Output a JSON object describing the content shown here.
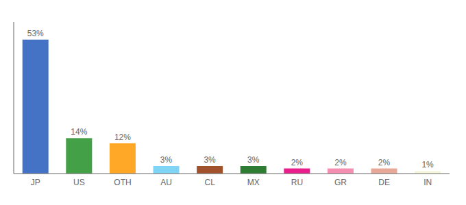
{
  "chart_data": {
    "type": "bar",
    "categories": [
      "JP",
      "US",
      "OTH",
      "AU",
      "CL",
      "MX",
      "RU",
      "GR",
      "DE",
      "IN"
    ],
    "values": [
      53,
      14,
      12,
      3,
      3,
      3,
      2,
      2,
      2,
      1
    ],
    "value_labels": [
      "53%",
      "14%",
      "12%",
      "3%",
      "3%",
      "3%",
      "2%",
      "2%",
      "2%",
      "1%"
    ],
    "colors": [
      "#4472c4",
      "#43a047",
      "#ffa726",
      "#80d4f6",
      "#a0522d",
      "#2e7d32",
      "#e91e8c",
      "#f48fb1",
      "#e8a898",
      "#f5f5dc"
    ],
    "ylim": [
      0,
      60
    ],
    "grid": false,
    "data_labels": true,
    "tick_labels": "x"
  }
}
